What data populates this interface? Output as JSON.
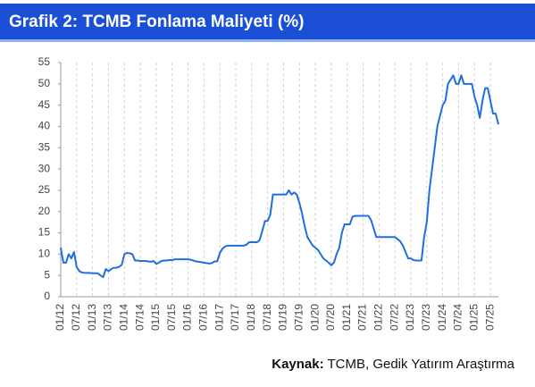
{
  "chart_data": {
    "type": "line",
    "title": "Grafik 2: TCMB Fonlama Maliyeti (%)",
    "source": {
      "label": "Kaynak:",
      "text": "TCMB, Gedik Yatırım Araştırma"
    },
    "color": "#1f6fe0",
    "grid": true,
    "x": [
      "01/12",
      "02/12",
      "03/12",
      "04/12",
      "05/12",
      "06/12",
      "07/12",
      "08/12",
      "09/12",
      "10/12",
      "11/12",
      "12/12",
      "01/13",
      "02/13",
      "03/13",
      "04/13",
      "05/13",
      "06/13",
      "07/13",
      "08/13",
      "09/13",
      "10/13",
      "11/13",
      "12/13",
      "01/14",
      "02/14",
      "03/14",
      "04/14",
      "05/14",
      "06/14",
      "07/14",
      "08/14",
      "09/14",
      "10/14",
      "11/14",
      "12/14",
      "01/15",
      "02/15",
      "03/15",
      "04/15",
      "05/15",
      "06/15",
      "07/15",
      "08/15",
      "09/15",
      "10/15",
      "11/15",
      "12/15",
      "01/16",
      "02/16",
      "03/16",
      "04/16",
      "05/16",
      "06/16",
      "07/16",
      "08/16",
      "09/16",
      "10/16",
      "11/16",
      "12/16",
      "01/17",
      "02/17",
      "03/17",
      "04/17",
      "05/17",
      "06/17",
      "07/17",
      "08/17",
      "09/17",
      "10/17",
      "11/17",
      "12/17",
      "01/18",
      "02/18",
      "03/18",
      "04/18",
      "05/18",
      "06/18",
      "07/18",
      "08/18",
      "09/18",
      "10/18",
      "11/18",
      "12/18",
      "01/19",
      "02/19",
      "03/19",
      "04/19",
      "05/19",
      "06/19",
      "07/19",
      "08/19",
      "09/19",
      "10/19",
      "11/19",
      "12/19",
      "01/20",
      "02/20",
      "03/20",
      "04/20",
      "05/20",
      "06/20",
      "07/20",
      "08/20",
      "09/20",
      "10/20",
      "11/20",
      "12/20",
      "01/21",
      "02/21",
      "03/21",
      "04/21",
      "05/21",
      "06/21",
      "07/21",
      "08/21",
      "09/21",
      "10/21",
      "11/21",
      "12/21",
      "01/22",
      "02/22",
      "03/22",
      "04/22",
      "05/22",
      "06/22",
      "07/22",
      "08/22",
      "09/22",
      "10/22",
      "11/22",
      "12/22",
      "01/23",
      "02/23",
      "03/23",
      "04/23",
      "05/23",
      "06/23",
      "07/23",
      "08/23",
      "09/23",
      "10/23",
      "11/23",
      "12/23",
      "01/24",
      "02/24",
      "03/24",
      "04/24",
      "05/24",
      "06/24",
      "07/24",
      "08/24",
      "09/24",
      "10/24",
      "11/24",
      "12/24",
      "01/25",
      "02/25",
      "03/25",
      "04/25",
      "05/25",
      "06/25",
      "07/25",
      "08/25",
      "09/25",
      "10/25"
    ],
    "values": [
      11.5,
      8,
      8,
      10,
      9,
      10.5,
      7,
      6,
      5.7,
      5.6,
      5.6,
      5.6,
      5.5,
      5.5,
      5.5,
      5,
      4.6,
      6.5,
      6,
      6.5,
      6.8,
      6.8,
      7,
      7.5,
      10,
      10.3,
      10.2,
      10,
      8.5,
      8.5,
      8.4,
      8.4,
      8.4,
      8.3,
      8.2,
      8.4,
      7.7,
      8,
      8.4,
      8.5,
      8.5,
      8.6,
      8.6,
      8.8,
      8.8,
      8.8,
      8.8,
      8.8,
      8.8,
      8.7,
      8.5,
      8.3,
      8.2,
      8.1,
      8,
      7.9,
      7.8,
      7.9,
      8.3,
      8.3,
      10.3,
      11.3,
      11.8,
      12,
      12,
      12,
      12,
      12,
      12,
      12,
      12.2,
      12.8,
      12.8,
      12.8,
      12.8,
      13.3,
      15.5,
      17.8,
      17.8,
      19.3,
      24,
      24,
      24,
      24,
      24,
      24,
      25,
      24,
      24.5,
      24,
      22,
      19.5,
      16.5,
      14,
      13,
      12,
      11.5,
      11,
      10,
      9,
      8.5,
      8,
      7.4,
      8,
      10,
      11.5,
      15,
      17,
      17,
      17,
      18.8,
      19,
      19,
      19,
      19,
      19,
      19,
      18,
      16,
      14,
      14,
      14,
      14,
      14,
      14,
      14,
      14,
      13.5,
      13,
      12,
      10.5,
      9,
      9,
      8.6,
      8.5,
      8.5,
      8.5,
      14,
      17.5,
      25,
      30,
      35,
      40,
      42.5,
      45,
      46,
      50,
      51,
      52,
      50,
      50,
      52,
      50,
      50,
      50,
      50,
      47,
      45,
      42,
      46,
      49,
      49,
      46,
      43,
      43,
      40.5
    ],
    "xlim": [
      "01/12",
      "10/25"
    ],
    "xticks": [
      "01/12",
      "07/12",
      "01/13",
      "07/13",
      "01/14",
      "07/14",
      "01/15",
      "07/15",
      "01/16",
      "07/16",
      "01/17",
      "07/17",
      "01/18",
      "07/18",
      "01/19",
      "07/19",
      "01/20",
      "07/20",
      "01/21",
      "07/21",
      "01/22",
      "07/22",
      "01/23",
      "07/23",
      "01/24",
      "07/24",
      "01/25",
      "07/25"
    ],
    "ylim": [
      0,
      55
    ],
    "yticks": [
      0,
      5,
      10,
      15,
      20,
      25,
      30,
      35,
      40,
      45,
      50,
      55
    ]
  }
}
